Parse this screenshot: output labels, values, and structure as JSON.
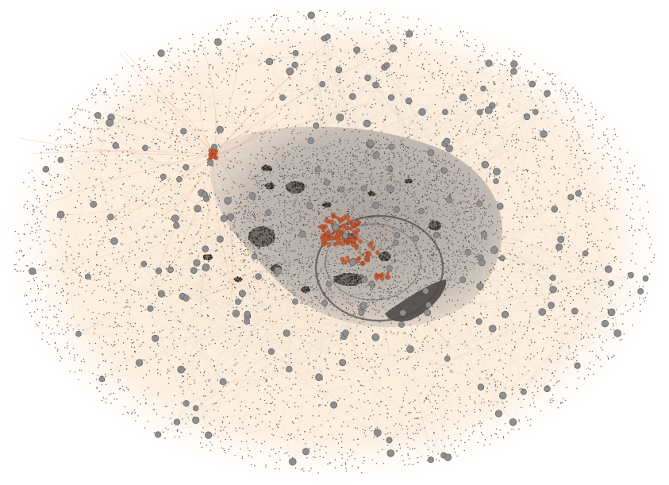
{
  "graph": {
    "kind": "force-directed network",
    "labels": [],
    "colors": {
      "background": "#ffffff",
      "halo": "#fcecd8",
      "peripheral_edge": "#e7ded3",
      "core_shade": "#b2aca8",
      "dense_band": "#4f4a47",
      "hub_node": "#8f8f8f",
      "hub_outline": "#5a5a5a",
      "small_node": "#2b2522",
      "highlight_node": "#c8552b",
      "highlight_edge": "#e9a07c"
    }
  }
}
